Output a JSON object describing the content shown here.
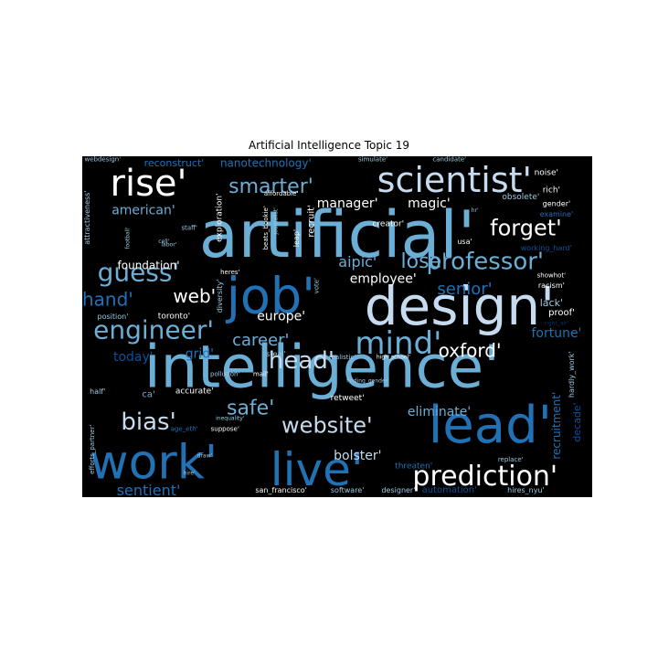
{
  "chart_data": {
    "type": "wordcloud",
    "title": "Artificial Intelligence Topic 19",
    "palette": {
      "white": "#ffffff",
      "pale": "#c6dbef",
      "light": "#6baed6",
      "mid": "#2171b5",
      "dark": "#08519c",
      "navy": "#08306b",
      "grey": "#9ecae1",
      "background": "#000000"
    },
    "words": [
      {
        "text": "artificial'",
        "x": 0.5,
        "y": 0.23,
        "size": 70,
        "color": "light"
      },
      {
        "text": "intelligence'",
        "x": 0.47,
        "y": 0.62,
        "size": 64,
        "color": "light"
      },
      {
        "text": "design'",
        "x": 0.74,
        "y": 0.44,
        "size": 58,
        "color": "pale"
      },
      {
        "text": "job'",
        "x": 0.37,
        "y": 0.41,
        "size": 54,
        "color": "mid"
      },
      {
        "text": "work'",
        "x": 0.14,
        "y": 0.9,
        "size": 52,
        "color": "mid"
      },
      {
        "text": "live'",
        "x": 0.46,
        "y": 0.92,
        "size": 50,
        "color": "mid"
      },
      {
        "text": "lead'",
        "x": 0.8,
        "y": 0.79,
        "size": 56,
        "color": "mid"
      },
      {
        "text": "rise'",
        "x": 0.13,
        "y": 0.08,
        "size": 40,
        "color": "white"
      },
      {
        "text": "scientist'",
        "x": 0.73,
        "y": 0.07,
        "size": 38,
        "color": "pale"
      },
      {
        "text": "mind'",
        "x": 0.62,
        "y": 0.55,
        "size": 34,
        "color": "light"
      },
      {
        "text": "prediction'",
        "x": 0.79,
        "y": 0.94,
        "size": 30,
        "color": "white"
      },
      {
        "text": "smarter'",
        "x": 0.37,
        "y": 0.09,
        "size": 22,
        "color": "light"
      },
      {
        "text": "engineer'",
        "x": 0.14,
        "y": 0.51,
        "size": 28,
        "color": "light"
      },
      {
        "text": "guess'",
        "x": 0.11,
        "y": 0.34,
        "size": 28,
        "color": "light"
      },
      {
        "text": "professor'",
        "x": 0.79,
        "y": 0.31,
        "size": 26,
        "color": "light"
      },
      {
        "text": "website'",
        "x": 0.48,
        "y": 0.79,
        "size": 24,
        "color": "pale"
      },
      {
        "text": "forget'",
        "x": 0.87,
        "y": 0.21,
        "size": 24,
        "color": "white"
      },
      {
        "text": "head'",
        "x": 0.43,
        "y": 0.6,
        "size": 26,
        "color": "pale"
      },
      {
        "text": "bias'",
        "x": 0.13,
        "y": 0.78,
        "size": 26,
        "color": "pale"
      },
      {
        "text": "oxford'",
        "x": 0.76,
        "y": 0.57,
        "size": 20,
        "color": "white"
      },
      {
        "text": "lose'",
        "x": 0.67,
        "y": 0.31,
        "size": 22,
        "color": "light"
      },
      {
        "text": "hand'",
        "x": 0.05,
        "y": 0.42,
        "size": 20,
        "color": "mid"
      },
      {
        "text": "web'",
        "x": 0.22,
        "y": 0.41,
        "size": 20,
        "color": "white"
      },
      {
        "text": "career'",
        "x": 0.35,
        "y": 0.54,
        "size": 18,
        "color": "light"
      },
      {
        "text": "safe'",
        "x": 0.33,
        "y": 0.74,
        "size": 22,
        "color": "light"
      },
      {
        "text": "senior'",
        "x": 0.75,
        "y": 0.39,
        "size": 18,
        "color": "mid"
      },
      {
        "text": "manager'",
        "x": 0.52,
        "y": 0.14,
        "size": 14,
        "color": "white"
      },
      {
        "text": "magic'",
        "x": 0.68,
        "y": 0.14,
        "size": 14,
        "color": "white"
      },
      {
        "text": "american'",
        "x": 0.12,
        "y": 0.16,
        "size": 14,
        "color": "light"
      },
      {
        "text": "aipic'",
        "x": 0.54,
        "y": 0.31,
        "size": 16,
        "color": "light"
      },
      {
        "text": "employee'",
        "x": 0.59,
        "y": 0.36,
        "size": 14,
        "color": "white"
      },
      {
        "text": "europe'",
        "x": 0.39,
        "y": 0.47,
        "size": 14,
        "color": "white"
      },
      {
        "text": "eliminate'",
        "x": 0.7,
        "y": 0.75,
        "size": 14,
        "color": "light"
      },
      {
        "text": "bolster'",
        "x": 0.54,
        "y": 0.88,
        "size": 14,
        "color": "pale"
      },
      {
        "text": "sentient'",
        "x": 0.13,
        "y": 0.98,
        "size": 16,
        "color": "mid"
      },
      {
        "text": "today'",
        "x": 0.1,
        "y": 0.59,
        "size": 14,
        "color": "dark"
      },
      {
        "text": "grid'",
        "x": 0.23,
        "y": 0.58,
        "size": 14,
        "color": "mid"
      },
      {
        "text": "foundation'",
        "x": 0.13,
        "y": 0.32,
        "size": 12,
        "color": "white"
      },
      {
        "text": "fortune'",
        "x": 0.93,
        "y": 0.52,
        "size": 14,
        "color": "mid"
      },
      {
        "text": "nanotechnology'",
        "x": 0.36,
        "y": 0.02,
        "size": 12,
        "color": "mid"
      },
      {
        "text": "reconstruct'",
        "x": 0.18,
        "y": 0.02,
        "size": 11,
        "color": "mid"
      },
      {
        "text": "webdesign'",
        "x": 0.04,
        "y": 0.01,
        "size": 7,
        "color": "grey"
      },
      {
        "text": "recruitment'",
        "x": 0.93,
        "y": 0.79,
        "size": 12,
        "color": "mid",
        "rotate": -90
      },
      {
        "text": "decade'",
        "x": 0.97,
        "y": 0.78,
        "size": 11,
        "color": "dark",
        "rotate": -90
      },
      {
        "text": "hardly_work'",
        "x": 0.96,
        "y": 0.64,
        "size": 8,
        "color": "grey",
        "rotate": -90
      },
      {
        "text": "automation'",
        "x": 0.72,
        "y": 0.98,
        "size": 10,
        "color": "dark"
      },
      {
        "text": "designer'",
        "x": 0.62,
        "y": 0.98,
        "size": 8,
        "color": "grey"
      },
      {
        "text": "software'",
        "x": 0.52,
        "y": 0.98,
        "size": 8,
        "color": "grey"
      },
      {
        "text": "san_francisco'",
        "x": 0.39,
        "y": 0.98,
        "size": 8,
        "color": "white"
      },
      {
        "text": "hires_nyu'",
        "x": 0.87,
        "y": 0.98,
        "size": 8,
        "color": "grey"
      },
      {
        "text": "threaten'",
        "x": 0.65,
        "y": 0.91,
        "size": 9,
        "color": "mid"
      },
      {
        "text": "replace'",
        "x": 0.84,
        "y": 0.89,
        "size": 7,
        "color": "grey"
      },
      {
        "text": "retweet'",
        "x": 0.52,
        "y": 0.71,
        "size": 9,
        "color": "white"
      },
      {
        "text": "accurate'",
        "x": 0.22,
        "y": 0.69,
        "size": 9,
        "color": "white"
      },
      {
        "text": "ca'",
        "x": 0.13,
        "y": 0.7,
        "size": 10,
        "color": "light"
      },
      {
        "text": "half'",
        "x": 0.03,
        "y": 0.69,
        "size": 8,
        "color": "grey"
      },
      {
        "text": "age_eth'",
        "x": 0.2,
        "y": 0.8,
        "size": 7,
        "color": "mid"
      },
      {
        "text": "suppose'",
        "x": 0.28,
        "y": 0.8,
        "size": 7,
        "color": "white"
      },
      {
        "text": "inequality'",
        "x": 0.29,
        "y": 0.77,
        "size": 6,
        "color": "grey"
      },
      {
        "text": "draw'",
        "x": 0.24,
        "y": 0.88,
        "size": 6,
        "color": "grey"
      },
      {
        "text": "hire'",
        "x": 0.21,
        "y": 0.93,
        "size": 6,
        "color": "grey"
      },
      {
        "text": "efforts_partner'",
        "x": 0.02,
        "y": 0.86,
        "size": 7,
        "color": "grey",
        "rotate": -90
      },
      {
        "text": "attractiveness'",
        "x": 0.01,
        "y": 0.18,
        "size": 8,
        "color": "grey",
        "rotate": -90
      },
      {
        "text": "football'",
        "x": 0.09,
        "y": 0.24,
        "size": 6,
        "color": "grey",
        "rotate": -90
      },
      {
        "text": "cell'",
        "x": 0.16,
        "y": 0.25,
        "size": 6,
        "color": "grey"
      },
      {
        "text": "staff'",
        "x": 0.21,
        "y": 0.21,
        "size": 7,
        "color": "grey"
      },
      {
        "text": "exploration'",
        "x": 0.27,
        "y": 0.18,
        "size": 9,
        "color": "white",
        "rotate": -90
      },
      {
        "text": "beats_bookie'",
        "x": 0.36,
        "y": 0.21,
        "size": 7,
        "color": "white",
        "rotate": -90
      },
      {
        "text": "journalist'",
        "x": 0.38,
        "y": 0.19,
        "size": 6,
        "color": "grey",
        "rotate": -90
      },
      {
        "text": "leap'",
        "x": 0.42,
        "y": 0.24,
        "size": 8,
        "color": "white",
        "rotate": -90
      },
      {
        "text": "recruit'",
        "x": 0.45,
        "y": 0.19,
        "size": 10,
        "color": "white",
        "rotate": -90
      },
      {
        "text": "vote'",
        "x": 0.46,
        "y": 0.38,
        "size": 7,
        "color": "grey",
        "rotate": -90
      },
      {
        "text": "heres'",
        "x": 0.29,
        "y": 0.34,
        "size": 7,
        "color": "white"
      },
      {
        "text": "diversity'",
        "x": 0.27,
        "y": 0.41,
        "size": 8,
        "color": "grey",
        "rotate": -90
      },
      {
        "text": "toronto'",
        "x": 0.18,
        "y": 0.47,
        "size": 9,
        "color": "white"
      },
      {
        "text": "position'",
        "x": 0.06,
        "y": 0.47,
        "size": 8,
        "color": "grey"
      },
      {
        "text": "steal'",
        "x": 0.38,
        "y": 0.58,
        "size": 8,
        "color": "grey"
      },
      {
        "text": "mail'",
        "x": 0.35,
        "y": 0.64,
        "size": 7,
        "color": "white"
      },
      {
        "text": "pollution'",
        "x": 0.28,
        "y": 0.64,
        "size": 7,
        "color": "grey"
      },
      {
        "text": "realistic'",
        "x": 0.51,
        "y": 0.59,
        "size": 7,
        "color": "grey"
      },
      {
        "text": "high_school'",
        "x": 0.61,
        "y": 0.59,
        "size": 6,
        "color": "white"
      },
      {
        "text": "finding_gender'",
        "x": 0.56,
        "y": 0.66,
        "size": 6,
        "color": "grey"
      },
      {
        "text": "affordable'",
        "x": 0.39,
        "y": 0.11,
        "size": 7,
        "color": "white"
      },
      {
        "text": "creator'",
        "x": 0.6,
        "y": 0.2,
        "size": 9,
        "color": "white"
      },
      {
        "text": "usa'",
        "x": 0.75,
        "y": 0.25,
        "size": 8,
        "color": "white"
      },
      {
        "text": "simulate'",
        "x": 0.57,
        "y": 0.01,
        "size": 7,
        "color": "grey"
      },
      {
        "text": "candidate'",
        "x": 0.72,
        "y": 0.01,
        "size": 7,
        "color": "grey"
      },
      {
        "text": "noise'",
        "x": 0.91,
        "y": 0.05,
        "size": 9,
        "color": "white"
      },
      {
        "text": "rich'",
        "x": 0.92,
        "y": 0.1,
        "size": 9,
        "color": "white"
      },
      {
        "text": "obsolete'",
        "x": 0.86,
        "y": 0.12,
        "size": 9,
        "color": "grey"
      },
      {
        "text": "gender'",
        "x": 0.93,
        "y": 0.14,
        "size": 8,
        "color": "white"
      },
      {
        "text": "examine'",
        "x": 0.93,
        "y": 0.17,
        "size": 8,
        "color": "mid"
      },
      {
        "text": "working_hard'",
        "x": 0.91,
        "y": 0.27,
        "size": 8,
        "color": "dark"
      },
      {
        "text": "hr'",
        "x": 0.77,
        "y": 0.16,
        "size": 6,
        "color": "grey"
      },
      {
        "text": "showhot'",
        "x": 0.92,
        "y": 0.35,
        "size": 7,
        "color": "white"
      },
      {
        "text": "racism'",
        "x": 0.92,
        "y": 0.38,
        "size": 8,
        "color": "white"
      },
      {
        "text": "lack'",
        "x": 0.92,
        "y": 0.43,
        "size": 11,
        "color": "grey"
      },
      {
        "text": "proof'",
        "x": 0.94,
        "y": 0.46,
        "size": 10,
        "color": "white"
      },
      {
        "text": "right_air'",
        "x": 0.93,
        "y": 0.49,
        "size": 6,
        "color": "navy"
      },
      {
        "text": "labor'",
        "x": 0.17,
        "y": 0.26,
        "size": 6,
        "color": "grey"
      }
    ]
  }
}
